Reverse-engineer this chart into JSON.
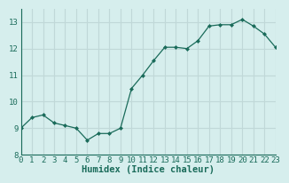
{
  "x": [
    0,
    1,
    2,
    3,
    4,
    5,
    6,
    7,
    8,
    9,
    10,
    11,
    12,
    13,
    14,
    15,
    16,
    17,
    18,
    19,
    20,
    21,
    22,
    23
  ],
  "y": [
    9.0,
    9.4,
    9.5,
    9.2,
    9.1,
    9.0,
    8.55,
    8.8,
    8.8,
    9.0,
    10.5,
    11.0,
    11.55,
    12.05,
    12.05,
    12.0,
    12.3,
    12.85,
    12.9,
    12.9,
    13.1,
    12.85,
    12.55,
    12.05
  ],
  "xlabel": "Humidex (Indice chaleur)",
  "ylim": [
    8,
    13.5
  ],
  "xlim": [
    0,
    23
  ],
  "yticks": [
    8,
    9,
    10,
    11,
    12,
    13
  ],
  "xticks": [
    0,
    1,
    2,
    3,
    4,
    5,
    6,
    7,
    8,
    9,
    10,
    11,
    12,
    13,
    14,
    15,
    16,
    17,
    18,
    19,
    20,
    21,
    22,
    23
  ],
  "bg_color": "#d6eeed",
  "grid_color": "#c0d8d8",
  "line_color": "#1a6b5a",
  "marker_color": "#1a6b5a",
  "tick_color": "#1a6b5a",
  "label_color": "#1a6b5a",
  "xlabel_fontsize": 7.5,
  "tick_fontsize": 6.5
}
